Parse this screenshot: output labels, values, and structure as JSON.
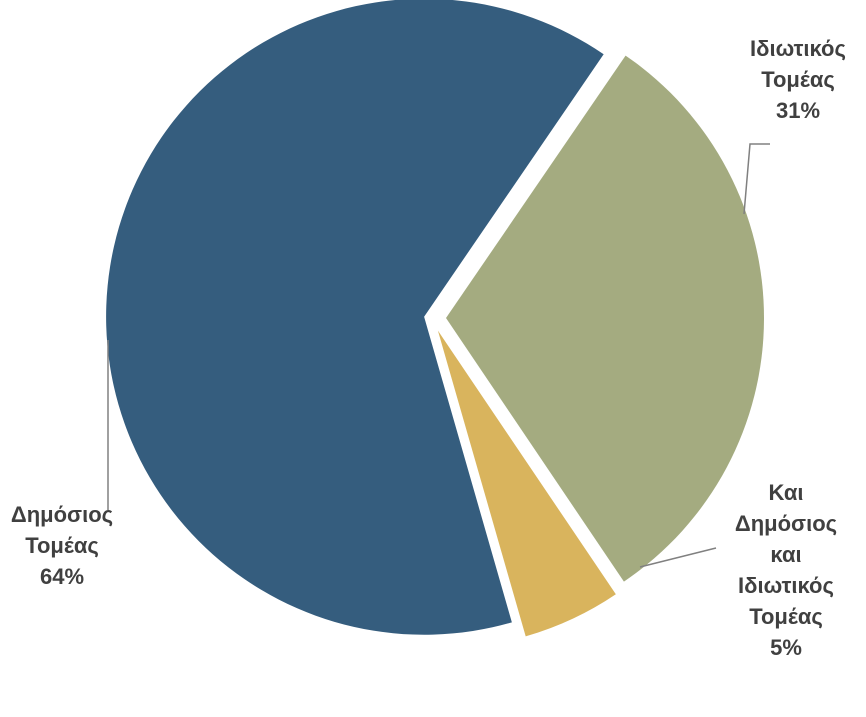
{
  "chart_data": {
    "type": "pie",
    "title": "",
    "slices": [
      {
        "label_lines": [
          "Δημόσιος",
          "Τομέας"
        ],
        "percent_label": "64%",
        "value": 64,
        "color": "#355d7e"
      },
      {
        "label_lines": [
          "Ιδιωτικός",
          "Τομέας"
        ],
        "percent_label": "31%",
        "value": 31,
        "color": "#a4ab80"
      },
      {
        "label_lines": [
          "Και",
          "Δημόσιος",
          "και",
          "Ιδιωτικός",
          "Τομέας"
        ],
        "percent_label": "5%",
        "value": 5,
        "color": "#d9b45d"
      }
    ],
    "legend": "none",
    "exploded": true
  }
}
